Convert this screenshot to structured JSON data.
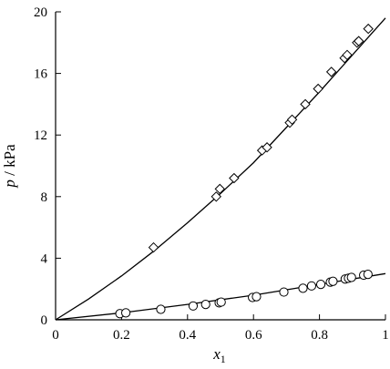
{
  "chart_data": {
    "type": "scatter",
    "xlabel": "x",
    "xlabel_sub": "1",
    "ylabel": "p / kPa",
    "xlim": [
      0,
      1
    ],
    "ylim": [
      0,
      20
    ],
    "xticks": [
      0,
      0.2,
      0.4,
      0.6,
      0.8,
      1
    ],
    "xtick_labels": [
      "0",
      "0.2",
      "0.4",
      "0.6",
      "0.8",
      "1"
    ],
    "yticks": [
      0,
      4,
      8,
      12,
      16,
      20
    ],
    "ytick_labels": [
      "0",
      "4",
      "8",
      "12",
      "16",
      "20"
    ],
    "grid": false,
    "legend": "none",
    "series": [
      {
        "marker": "diamond",
        "points": [
          {
            "x": 0.297,
            "y": 4.7
          },
          {
            "x": 0.487,
            "y": 8.0
          },
          {
            "x": 0.498,
            "y": 8.5
          },
          {
            "x": 0.541,
            "y": 9.2
          },
          {
            "x": 0.626,
            "y": 11.0
          },
          {
            "x": 0.641,
            "y": 11.2
          },
          {
            "x": 0.71,
            "y": 12.8
          },
          {
            "x": 0.717,
            "y": 13.0
          },
          {
            "x": 0.757,
            "y": 14.0
          },
          {
            "x": 0.796,
            "y": 15.0
          },
          {
            "x": 0.836,
            "y": 16.1
          },
          {
            "x": 0.876,
            "y": 17.0
          },
          {
            "x": 0.884,
            "y": 17.2
          },
          {
            "x": 0.914,
            "y": 18.0
          },
          {
            "x": 0.919,
            "y": 18.1
          },
          {
            "x": 0.948,
            "y": 18.9
          }
        ]
      },
      {
        "marker": "circle",
        "points": [
          {
            "x": 0.195,
            "y": 0.4
          },
          {
            "x": 0.213,
            "y": 0.45
          },
          {
            "x": 0.319,
            "y": 0.68
          },
          {
            "x": 0.417,
            "y": 0.9
          },
          {
            "x": 0.455,
            "y": 1.0
          },
          {
            "x": 0.496,
            "y": 1.1
          },
          {
            "x": 0.502,
            "y": 1.15
          },
          {
            "x": 0.597,
            "y": 1.45
          },
          {
            "x": 0.609,
            "y": 1.5
          },
          {
            "x": 0.692,
            "y": 1.8
          },
          {
            "x": 0.75,
            "y": 2.05
          },
          {
            "x": 0.776,
            "y": 2.2
          },
          {
            "x": 0.804,
            "y": 2.3
          },
          {
            "x": 0.833,
            "y": 2.45
          },
          {
            "x": 0.841,
            "y": 2.5
          },
          {
            "x": 0.878,
            "y": 2.65
          },
          {
            "x": 0.888,
            "y": 2.7
          },
          {
            "x": 0.897,
            "y": 2.75
          },
          {
            "x": 0.934,
            "y": 2.9
          },
          {
            "x": 0.947,
            "y": 2.95
          }
        ]
      }
    ],
    "curves": [
      {
        "x": [
          0,
          0.1,
          0.2,
          0.3,
          0.4,
          0.5,
          0.6,
          0.7,
          0.8,
          0.9,
          1.0
        ],
        "y": [
          0,
          1.35,
          2.85,
          4.5,
          6.3,
          8.2,
          10.2,
          12.5,
          14.8,
          17.2,
          19.6
        ]
      },
      {
        "x": [
          0,
          0.2,
          0.4,
          0.6,
          0.8,
          1.0
        ],
        "y": [
          0,
          0.45,
          1.0,
          1.6,
          2.3,
          3.0
        ]
      }
    ]
  }
}
